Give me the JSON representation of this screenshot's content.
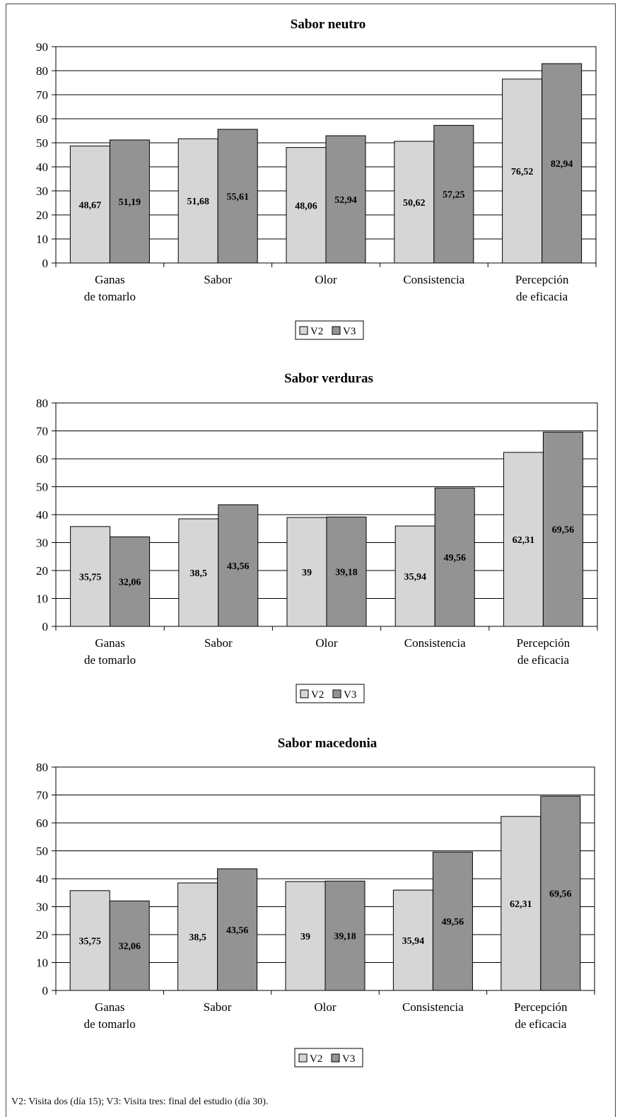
{
  "footnote": "V2: Visita dos (día 15); V3: Visita tres: final del estudio (día 30).",
  "colors": {
    "v2": "#d6d6d6",
    "v3": "#939393",
    "grid": "#000000"
  },
  "chart_data": [
    {
      "type": "bar",
      "title": "Sabor neutro",
      "categories": [
        [
          "Ganas",
          "de tomarlo"
        ],
        [
          "Sabor"
        ],
        [
          "Olor"
        ],
        [
          "Consistencia"
        ],
        [
          "Percepción",
          "de eficacia"
        ]
      ],
      "ylim": [
        0,
        90
      ],
      "yticks": [
        0,
        10,
        20,
        30,
        40,
        50,
        60,
        70,
        80,
        90
      ],
      "grid": true,
      "legend": "bottom-center",
      "series": [
        {
          "name": "V2",
          "values": [
            48.67,
            51.68,
            48.06,
            50.62,
            76.52
          ],
          "labels": [
            "48,67",
            "51,68",
            "48,06",
            "50,62",
            "76,52"
          ]
        },
        {
          "name": "V3",
          "values": [
            51.19,
            55.61,
            52.94,
            57.25,
            82.94
          ],
          "labels": [
            "51,19",
            "55,61",
            "52,94",
            "57,25",
            "82,94"
          ]
        }
      ]
    },
    {
      "type": "bar",
      "title": "Sabor verduras",
      "categories": [
        [
          "Ganas",
          "de tomarlo"
        ],
        [
          "Sabor"
        ],
        [
          "Olor"
        ],
        [
          "Consistencia"
        ],
        [
          "Percepción",
          "de eficacia"
        ]
      ],
      "ylim": [
        0,
        80
      ],
      "yticks": [
        0,
        10,
        20,
        30,
        40,
        50,
        60,
        70,
        80
      ],
      "grid": true,
      "legend": "bottom-center",
      "series": [
        {
          "name": "V2",
          "values": [
            35.75,
            38.5,
            39,
            35.94,
            62.31
          ],
          "labels": [
            "35,75",
            "38,5",
            "39",
            "35,94",
            "62,31"
          ]
        },
        {
          "name": "V3",
          "values": [
            32.06,
            43.56,
            39.18,
            49.56,
            69.56
          ],
          "labels": [
            "32,06",
            "43,56",
            "39,18",
            "49,56",
            "69,56"
          ]
        }
      ]
    },
    {
      "type": "bar",
      "title": "Sabor macedonia",
      "categories": [
        [
          "Ganas",
          "de tomarlo"
        ],
        [
          "Sabor"
        ],
        [
          "Olor"
        ],
        [
          "Consistencia"
        ],
        [
          "Percepción",
          "de eficacia"
        ]
      ],
      "ylim": [
        0,
        80
      ],
      "yticks": [
        0,
        10,
        20,
        30,
        40,
        50,
        60,
        70,
        80
      ],
      "grid": true,
      "legend": "bottom-center",
      "series": [
        {
          "name": "V2",
          "values": [
            35.75,
            38.5,
            39,
            35.94,
            62.31
          ],
          "labels": [
            "35,75",
            "38,5",
            "39",
            "35,94",
            "62,31"
          ]
        },
        {
          "name": "V3",
          "values": [
            32.06,
            43.56,
            39.18,
            49.56,
            69.56
          ],
          "labels": [
            "32,06",
            "43,56",
            "39,18",
            "49,56",
            "69,56"
          ]
        }
      ]
    }
  ]
}
